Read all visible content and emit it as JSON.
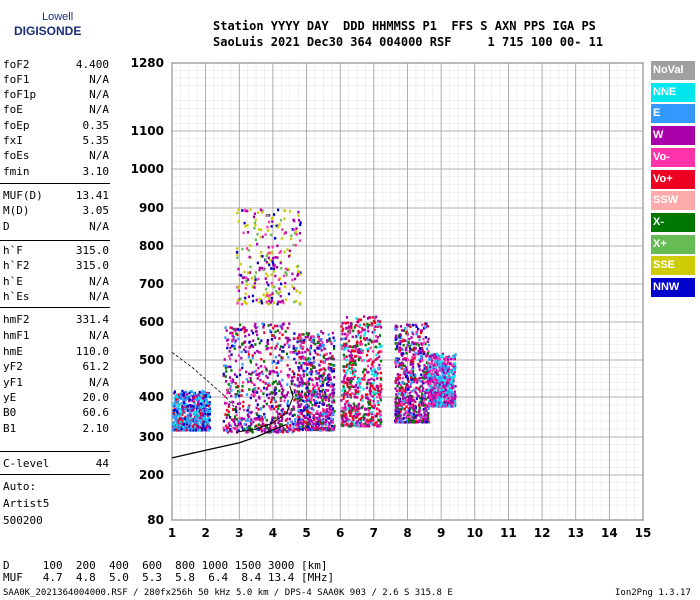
{
  "logo": {
    "line1": "Lowell",
    "line2": "DIGISONDE"
  },
  "header": {
    "row1": "Station YYYY DAY  DDD HHMMSS P1  FFS S AXN PPS IGA PS",
    "row2": "SaoLuis 2021 Dec30 364 004000 RSF     1 715 100 00- 11"
  },
  "params": [
    {
      "k": "foF2",
      "v": "4.400"
    },
    {
      "k": "foF1",
      "v": "N/A"
    },
    {
      "k": "foF1p",
      "v": "N/A"
    },
    {
      "k": "foE",
      "v": "N/A"
    },
    {
      "k": "foEp",
      "v": "0.35"
    },
    {
      "k": "fxI",
      "v": "5.35"
    },
    {
      "k": "foEs",
      "v": "N/A"
    },
    {
      "k": "fmin",
      "v": "3.10"
    },
    {
      "k": "MUF(D)",
      "v": "13.41"
    },
    {
      "k": "M(D)",
      "v": "3.05"
    },
    {
      "k": "D",
      "v": "N/A"
    },
    {
      "k": "h`F",
      "v": "315.0"
    },
    {
      "k": "h`F2",
      "v": "315.0"
    },
    {
      "k": "h`E",
      "v": "N/A"
    },
    {
      "k": "h`Es",
      "v": "N/A"
    },
    {
      "k": "hmF2",
      "v": "331.4"
    },
    {
      "k": "hmF1",
      "v": "N/A"
    },
    {
      "k": "hmE",
      "v": "110.0"
    },
    {
      "k": "yF2",
      "v": "61.2"
    },
    {
      "k": "yF1",
      "v": "N/A"
    },
    {
      "k": "yE",
      "v": "20.0"
    },
    {
      "k": "B0",
      "v": "60.6"
    },
    {
      "k": "B1",
      "v": "2.10"
    },
    {
      "k": "C-level",
      "v": "44"
    }
  ],
  "auto": {
    "line1": "Auto:",
    "line2": "Artist5",
    "line3": "500200"
  },
  "legend": [
    {
      "label": "NoVal",
      "color": "#a0a0a0"
    },
    {
      "label": "NNE",
      "color": "#00e5ee"
    },
    {
      "label": "E",
      "color": "#3399ff"
    },
    {
      "label": "W",
      "color": "#aa00aa"
    },
    {
      "label": "Vo-",
      "color": "#ff33aa"
    },
    {
      "label": "Vo+",
      "color": "#ee0022"
    },
    {
      "label": "SSW",
      "color": "#ffaaaa"
    },
    {
      "label": "X-",
      "color": "#007700"
    },
    {
      "label": "X+",
      "color": "#66bb55"
    },
    {
      "label": "SSE",
      "color": "#cccc00"
    },
    {
      "label": "NNW",
      "color": "#0000cc"
    }
  ],
  "bottom": {
    "dRow": "D     100  200  400  600  800 1000 1500 3000 [km]",
    "mufRow": "MUF   4.7  4.8  5.0  5.3  5.8  6.4  8.4 13.4 [MHz]",
    "footer": "SAA0K_2021364004000.RSF / 280fx256h 50 kHz 5.0 km / DPS-4 SAA0K 903 / 2.6 S 315.8 E",
    "version": "Ion2Png 1.3.17"
  },
  "chart_data": {
    "type": "scatter",
    "x_ticks": [
      1,
      2,
      3,
      4,
      5,
      6,
      7,
      8,
      9,
      10,
      11,
      12,
      13,
      14,
      15
    ],
    "y_ticks": [
      80,
      200,
      300,
      400,
      500,
      600,
      700,
      800,
      900,
      1000,
      1100,
      1280
    ],
    "xlim": [
      1,
      15
    ],
    "y_scale": "piecewise: linear 80–300, compressed above 300",
    "ylim": [
      80,
      1280
    ],
    "grid": true,
    "clusters": [
      {
        "x": [
          1.0,
          2.1
        ],
        "y": [
          320,
          420
        ],
        "mode": "E"
      },
      {
        "x": [
          2.5,
          4.7
        ],
        "y": [
          315,
          600
        ],
        "mode": "W"
      },
      {
        "x": [
          4.7,
          5.8
        ],
        "y": [
          320,
          580
        ],
        "mode": "W"
      },
      {
        "x": [
          6.0,
          7.2
        ],
        "y": [
          330,
          620
        ],
        "mode": "Vo+"
      },
      {
        "x": [
          7.6,
          8.6
        ],
        "y": [
          340,
          600
        ],
        "mode": "W"
      },
      {
        "x": [
          8.6,
          9.4
        ],
        "y": [
          380,
          520
        ],
        "mode": "NNE"
      },
      {
        "x": [
          2.9,
          4.8
        ],
        "y": [
          650,
          900
        ],
        "mode": "SSE"
      }
    ],
    "profile_curve": {
      "x": [
        1,
        2,
        3,
        3.5,
        4,
        4.4
      ],
      "y": [
        245,
        265,
        285,
        300,
        318,
        331.4
      ]
    }
  }
}
